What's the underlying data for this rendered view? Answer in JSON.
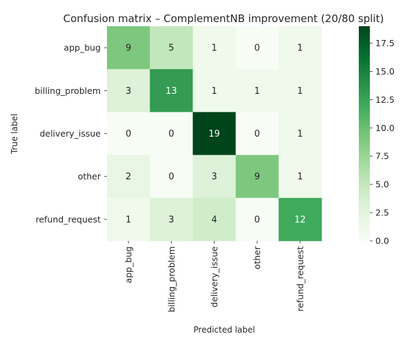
{
  "chart_data": {
    "type": "heatmap",
    "title": "Confusion matrix – ComplementNB improvement (20/80 split)",
    "xlabel": "Predicted label",
    "ylabel": "True label",
    "x_categories": [
      "app_bug",
      "billing_problem",
      "delivery_issue",
      "other",
      "refund_request"
    ],
    "y_categories": [
      "app_bug",
      "billing_problem",
      "delivery_issue",
      "other",
      "refund_request"
    ],
    "values": [
      [
        9,
        5,
        1,
        0,
        1
      ],
      [
        3,
        13,
        1,
        1,
        1
      ],
      [
        0,
        0,
        19,
        0,
        1
      ],
      [
        2,
        0,
        3,
        9,
        1
      ],
      [
        1,
        3,
        4,
        0,
        12
      ]
    ],
    "colormap": "Greens",
    "vmin": 0,
    "vmax": 19,
    "colorbar_ticks": [
      "0.0",
      "2.5",
      "5.0",
      "7.5",
      "10.0",
      "12.5",
      "15.0",
      "17.5"
    ],
    "annotate": true
  }
}
